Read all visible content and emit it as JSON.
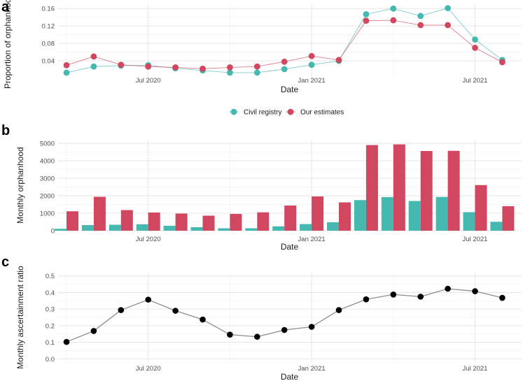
{
  "colors": {
    "civil_registry": "#45b8b0",
    "our_estimates": "#d1475f",
    "ratio_point": "#000000",
    "ratio_line": "#8c8c8c"
  },
  "chart_data": [
    {
      "panel": "a",
      "type": "line",
      "title": "",
      "xlabel": "Date",
      "ylabel": "Proportion of orphanhood",
      "x": [
        "2020-04",
        "2020-05",
        "2020-06",
        "2020-07",
        "2020-08",
        "2020-09",
        "2020-10",
        "2020-11",
        "2020-12",
        "2021-01",
        "2021-02",
        "2021-03",
        "2021-04",
        "2021-05",
        "2021-06",
        "2021-07",
        "2021-08"
      ],
      "x_ticks": [
        {
          "month": "2020-07",
          "label": "Jul 2020"
        },
        {
          "month": "2021-01",
          "label": "Jan 2021"
        },
        {
          "month": "2021-07",
          "label": "Jul 2021"
        }
      ],
      "ylim": [
        0.0,
        0.17
      ],
      "y_ticks": [
        {
          "value": 0.04,
          "label": "0.04"
        },
        {
          "value": 0.08,
          "label": "0.08"
        },
        {
          "value": 0.12,
          "label": "0.12"
        },
        {
          "value": 0.16,
          "label": "0.16"
        }
      ],
      "series": [
        {
          "name": "Civil registry",
          "color_key": "civil_registry",
          "values": [
            0.013,
            0.027,
            0.029,
            0.03,
            0.023,
            0.018,
            0.013,
            0.013,
            0.021,
            0.031,
            0.04,
            0.147,
            0.16,
            0.143,
            0.161,
            0.089,
            0.042
          ]
        },
        {
          "name": "Our estimates",
          "color_key": "our_estimates",
          "values": [
            0.03,
            0.05,
            0.031,
            0.027,
            0.025,
            0.022,
            0.025,
            0.027,
            0.038,
            0.051,
            0.042,
            0.132,
            0.133,
            0.122,
            0.122,
            0.07,
            0.037
          ]
        }
      ],
      "legend_position": "bottom"
    },
    {
      "panel": "b",
      "type": "bar",
      "title": "",
      "xlabel": "Date",
      "ylabel": "Monthly orphanhood",
      "x": [
        "2020-04",
        "2020-05",
        "2020-06",
        "2020-07",
        "2020-08",
        "2020-09",
        "2020-10",
        "2020-11",
        "2020-12",
        "2021-01",
        "2021-02",
        "2021-03",
        "2021-04",
        "2021-05",
        "2021-06",
        "2021-07",
        "2021-08"
      ],
      "x_ticks": [
        {
          "month": "2020-07",
          "label": "Jul 2020"
        },
        {
          "month": "2021-01",
          "label": "Jan 2021"
        },
        {
          "month": "2021-07",
          "label": "Jul 2021"
        }
      ],
      "ylim": [
        0,
        5200
      ],
      "y_ticks": [
        {
          "value": 0,
          "label": "0"
        },
        {
          "value": 1000,
          "label": "1000"
        },
        {
          "value": 2000,
          "label": "2000"
        },
        {
          "value": 3000,
          "label": "3000"
        },
        {
          "value": 4000,
          "label": "4000"
        },
        {
          "value": 5000,
          "label": "5000"
        }
      ],
      "series": [
        {
          "name": "Civil registry",
          "color_key": "civil_registry",
          "values": [
            110,
            320,
            340,
            370,
            280,
            200,
            140,
            140,
            250,
            380,
            480,
            1750,
            1920,
            1700,
            1930,
            1060,
            510
          ]
        },
        {
          "name": "Our estimates",
          "color_key": "our_estimates",
          "values": [
            1110,
            1940,
            1180,
            1040,
            980,
            860,
            960,
            1050,
            1440,
            1960,
            1620,
            4900,
            4940,
            4560,
            4570,
            2610,
            1400
          ]
        }
      ]
    },
    {
      "panel": "c",
      "type": "line",
      "title": "",
      "xlabel": "Date",
      "ylabel": "Monthly ascertainment ratio",
      "x": [
        "2020-04",
        "2020-05",
        "2020-06",
        "2020-07",
        "2020-08",
        "2020-09",
        "2020-10",
        "2020-11",
        "2020-12",
        "2021-01",
        "2021-02",
        "2021-03",
        "2021-04",
        "2021-05",
        "2021-06",
        "2021-07",
        "2021-08"
      ],
      "x_ticks": [
        {
          "month": "2020-07",
          "label": "Jul 2020"
        },
        {
          "month": "2021-01",
          "label": "Jan 2021"
        },
        {
          "month": "2021-07",
          "label": "Jul 2021"
        }
      ],
      "ylim": [
        -0.02,
        0.52
      ],
      "y_ticks": [
        {
          "value": 0.0,
          "label": "0.0"
        },
        {
          "value": 0.1,
          "label": "0.1"
        },
        {
          "value": 0.2,
          "label": "0.2"
        },
        {
          "value": 0.3,
          "label": "0.3"
        },
        {
          "value": 0.4,
          "label": "0.4"
        },
        {
          "value": 0.5,
          "label": "0.5"
        }
      ],
      "series": [
        {
          "name": "Ascertainment ratio",
          "color_key": "ratio_point",
          "values": [
            0.102,
            0.168,
            0.294,
            0.357,
            0.29,
            0.237,
            0.146,
            0.133,
            0.174,
            0.193,
            0.294,
            0.359,
            0.388,
            0.375,
            0.423,
            0.408,
            0.368
          ]
        }
      ]
    }
  ]
}
